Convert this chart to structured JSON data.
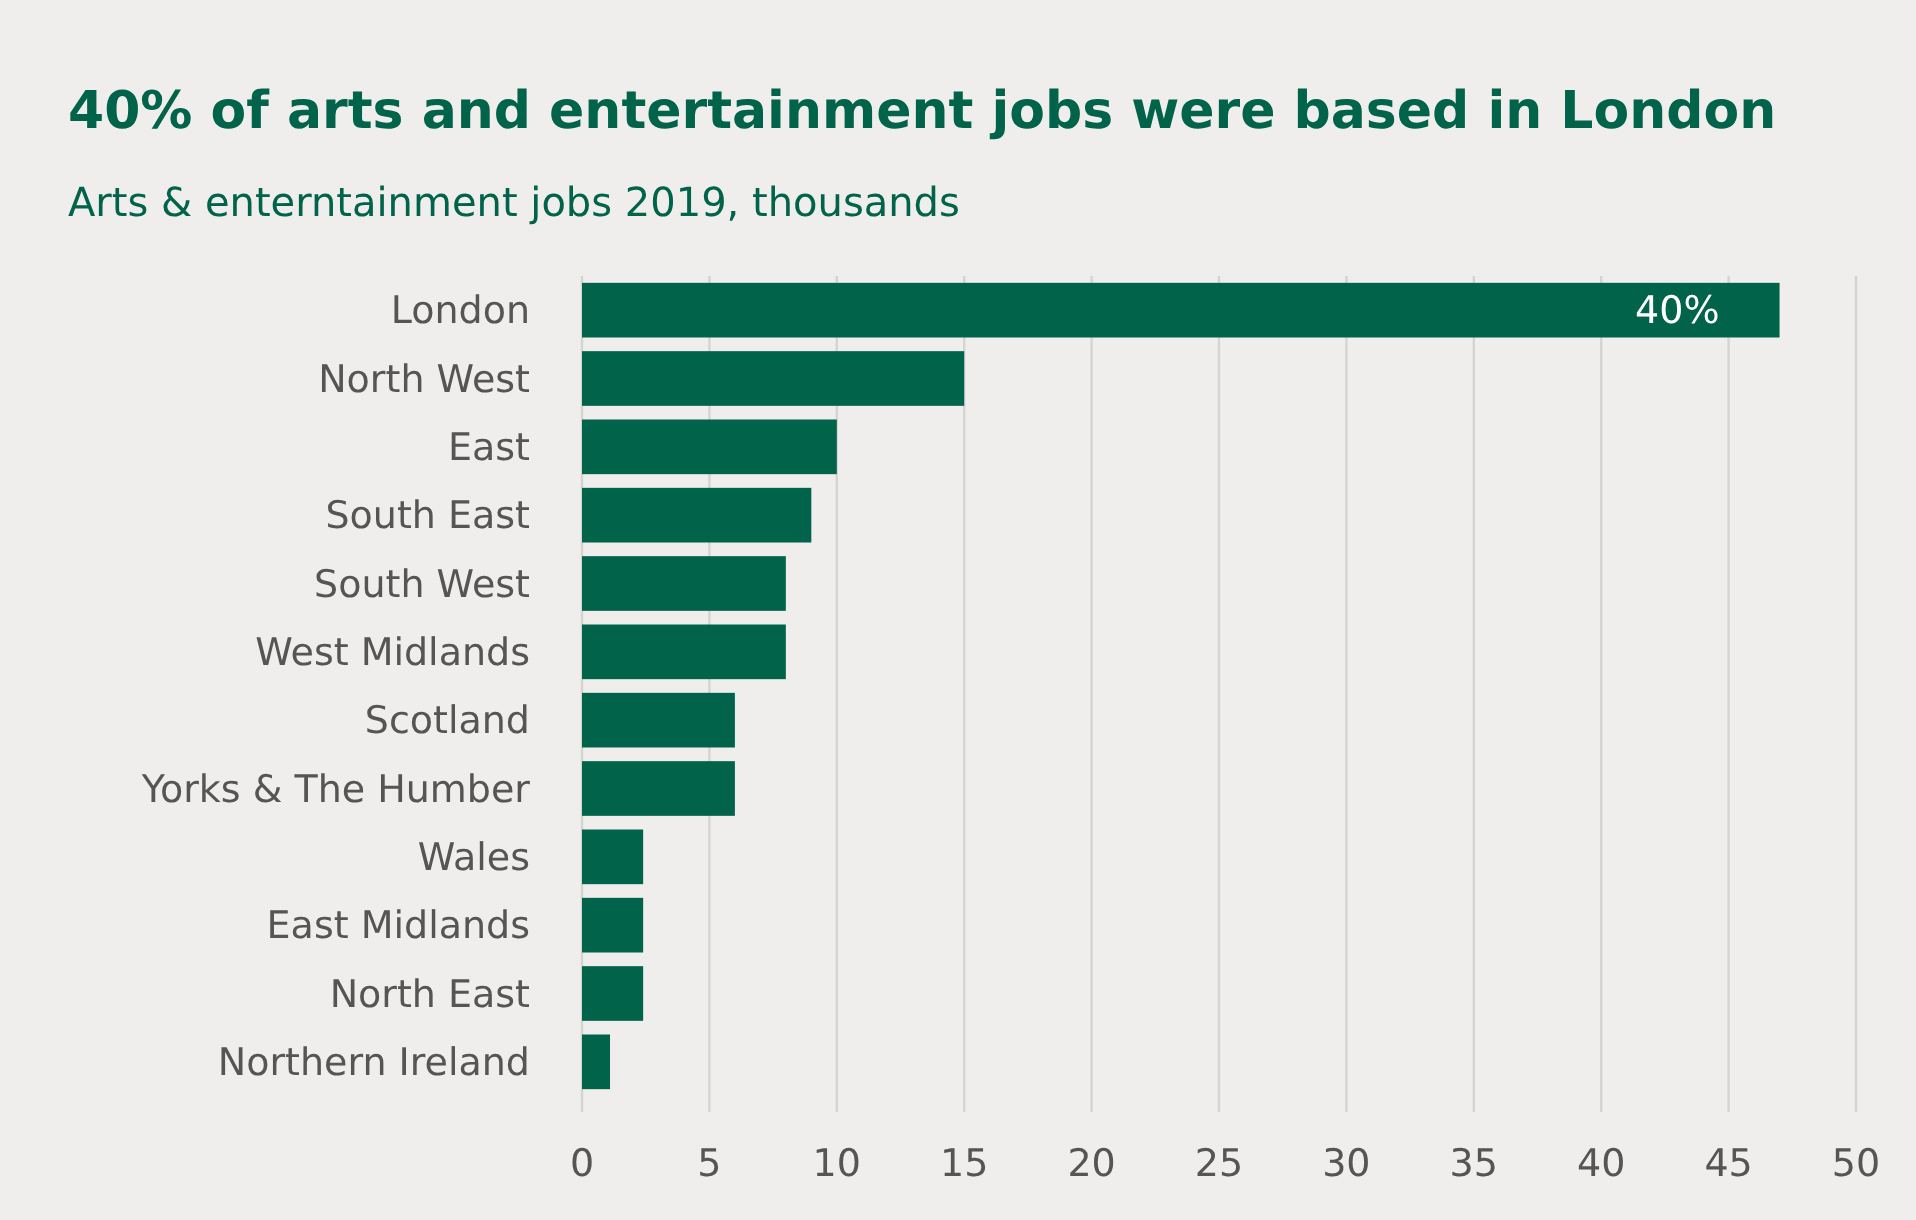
{
  "chart_data": {
    "type": "bar",
    "orientation": "horizontal",
    "title": "40% of arts and entertainment jobs were based in London",
    "subtitle": "Arts & enterntainment jobs 2019, thousands",
    "categories": [
      "London",
      "North West",
      "East",
      "South East",
      "South West",
      "West Midlands",
      "Scotland",
      "Yorks & The Humber",
      "Wales",
      "East Midlands",
      "North East",
      "Northern Ireland"
    ],
    "values": [
      47,
      15,
      10,
      9,
      8,
      8,
      6,
      6,
      2.4,
      2.4,
      2.4,
      1.1
    ],
    "color": "#00634a",
    "xlim": [
      0,
      50
    ],
    "xticks": [
      0,
      5,
      10,
      15,
      20,
      25,
      30,
      35,
      40,
      45,
      50
    ],
    "grid": "x",
    "annotations": [
      {
        "text": "40%",
        "x": 47,
        "y": "London"
      }
    ]
  }
}
